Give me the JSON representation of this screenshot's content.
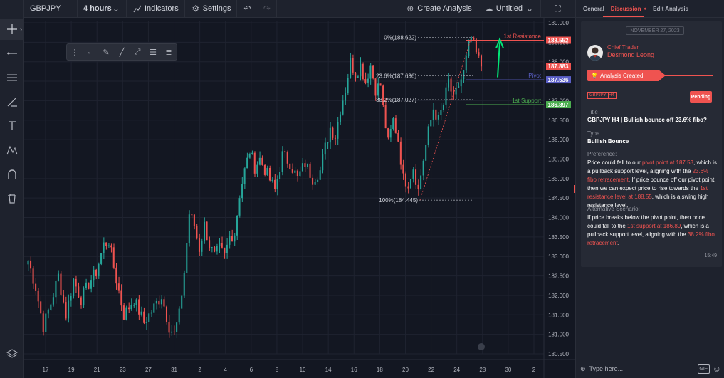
{
  "toolbar": {
    "symbol": "GBPJPY",
    "interval": "4 hours",
    "indicators": "Indicators",
    "settings": "Settings",
    "create_analysis": "Create Analysis",
    "layout_name": "Untitled"
  },
  "panel": {
    "tabs": [
      "General",
      "Discussion",
      "Edit Analysis"
    ],
    "active_tab": "Discussion",
    "date_chip": "NOVEMBER 27, 2023",
    "author_role": "Chief Trader",
    "author_name": "Desmond Leong",
    "status_banner": "Analysis Created",
    "tags": [
      "GBPJPY",
      "H4"
    ],
    "status": "Pending",
    "title_label": "Title",
    "title_value": "GBPJPY H4 | Bullish bounce off 23.6% fibo?",
    "type_label": "Type",
    "type_value": "Bullish Bounce",
    "preference_label": "Preference:",
    "preference_segments": [
      {
        "t": "Price could fall to our ",
        "hl": false
      },
      {
        "t": "pivot point at 187.53",
        "hl": true
      },
      {
        "t": ", which is a pullback support level, aligning with the ",
        "hl": false
      },
      {
        "t": "23.6% fibo retracement",
        "hl": true
      },
      {
        "t": ". If price bounce off our pivot point, then we can expect price to rise towards the ",
        "hl": false
      },
      {
        "t": "1st resistance level at 188.55",
        "hl": true
      },
      {
        "t": ", which is a swing high resistance level.",
        "hl": false
      }
    ],
    "alternative_label": "Alternative Scenario:",
    "alternative_segments": [
      {
        "t": "If price breaks below the pivot point, then price could fall to the ",
        "hl": false
      },
      {
        "t": "1st support at 186.89",
        "hl": true
      },
      {
        "t": ", which is a pullback support level, aligning with the ",
        "hl": false
      },
      {
        "t": "38.2% fibo retracement",
        "hl": true
      },
      {
        "t": ".",
        "hl": false
      }
    ],
    "time": "15:49",
    "composer_placeholder": "Type here...",
    "gif_label": "GIF"
  },
  "chart_data": {
    "type": "candlestick",
    "ylim": [
      180.5,
      189.0
    ],
    "y_ticks": [
      "189.000",
      "188.500",
      "188.000",
      "187.500",
      "187.000",
      "186.500",
      "186.000",
      "185.500",
      "185.000",
      "184.500",
      "184.000",
      "183.500",
      "183.000",
      "182.500",
      "182.000",
      "181.500",
      "181.000",
      "180.500"
    ],
    "x_ticks": [
      "17",
      "19",
      "21",
      "23",
      "27",
      "31",
      "2",
      "4",
      "6",
      "8",
      "10",
      "14",
      "16",
      "18",
      "20",
      "22",
      "24",
      "28",
      "30",
      "2"
    ],
    "up_color": "#26a69a",
    "down_color": "#ef5350",
    "levels": [
      {
        "name": "1st Resistance",
        "value": 188.552,
        "label": "188.552",
        "color": "#ef5350"
      },
      {
        "name": "Pivot",
        "value": 187.536,
        "label": "187.536",
        "color": "#5b5fc7"
      },
      {
        "name": "1st Support",
        "value": 186.897,
        "label": "186.897",
        "color": "#4caf50"
      }
    ],
    "price_labels": [
      {
        "value": 187.883,
        "label": "187.883",
        "color": "#ef5350"
      }
    ],
    "fibo": [
      {
        "ratio": "0%",
        "value": 188.622,
        "text": "0%(188.622)"
      },
      {
        "ratio": "23.6%",
        "value": 187.636,
        "text": "23.6%(187.636)"
      },
      {
        "ratio": "38.2%",
        "value": 187.027,
        "text": "38.2%(187.027)"
      },
      {
        "ratio": "100%",
        "value": 184.445,
        "text": "100%(184.445)"
      }
    ],
    "waypoints": [
      [
        0,
        182.9
      ],
      [
        3,
        182.2
      ],
      [
        6,
        181.2
      ],
      [
        9,
        181.8
      ],
      [
        12,
        182.5
      ],
      [
        15,
        181.5
      ],
      [
        18,
        182.4
      ],
      [
        21,
        181.9
      ],
      [
        24,
        182.3
      ],
      [
        27,
        182.6
      ],
      [
        30,
        183.3
      ],
      [
        32,
        183.4
      ],
      [
        35,
        182.4
      ],
      [
        38,
        181.5
      ],
      [
        42,
        181.9
      ],
      [
        46,
        181.3
      ],
      [
        50,
        181.7
      ],
      [
        53,
        182.0
      ],
      [
        56,
        181.2
      ],
      [
        58,
        181.0
      ],
      [
        60,
        181.5
      ],
      [
        62,
        182.6
      ],
      [
        64,
        184.1
      ],
      [
        66,
        183.8
      ],
      [
        68,
        183.2
      ],
      [
        70,
        183.8
      ],
      [
        72,
        183.3
      ],
      [
        74,
        183.0
      ],
      [
        76,
        183.2
      ],
      [
        78,
        183.0
      ],
      [
        80,
        183.5
      ],
      [
        82,
        183.6
      ],
      [
        84,
        184.6
      ],
      [
        86,
        185.2
      ],
      [
        88,
        185.7
      ],
      [
        90,
        185.3
      ],
      [
        92,
        185.5
      ],
      [
        95,
        185.1
      ],
      [
        98,
        184.7
      ],
      [
        101,
        185.6
      ],
      [
        104,
        185.4
      ],
      [
        107,
        185.0
      ],
      [
        110,
        185.4
      ],
      [
        113,
        185.0
      ],
      [
        116,
        185.2
      ],
      [
        118,
        185.8
      ],
      [
        120,
        186.3
      ],
      [
        122,
        186.1
      ],
      [
        124,
        186.8
      ],
      [
        126,
        187.3
      ],
      [
        128,
        188.0
      ],
      [
        130,
        187.7
      ],
      [
        132,
        187.9
      ],
      [
        134,
        187.5
      ],
      [
        136,
        187.9
      ],
      [
        138,
        187.3
      ],
      [
        140,
        187.4
      ],
      [
        141,
        186.8
      ],
      [
        143,
        185.9
      ],
      [
        145,
        186.5
      ],
      [
        147,
        186.0
      ],
      [
        149,
        185.0
      ],
      [
        151,
        184.9
      ],
      [
        153,
        185.3
      ],
      [
        155,
        184.7
      ],
      [
        157,
        185.5
      ],
      [
        159,
        186.2
      ],
      [
        161,
        186.8
      ],
      [
        163,
        186.5
      ],
      [
        165,
        186.9
      ],
      [
        167,
        187.5
      ],
      [
        169,
        187.0
      ],
      [
        171,
        187.4
      ],
      [
        173,
        187.7
      ],
      [
        175,
        188.4
      ],
      [
        176,
        188.6
      ],
      [
        178,
        188.2
      ],
      [
        180,
        187.9
      ]
    ]
  }
}
